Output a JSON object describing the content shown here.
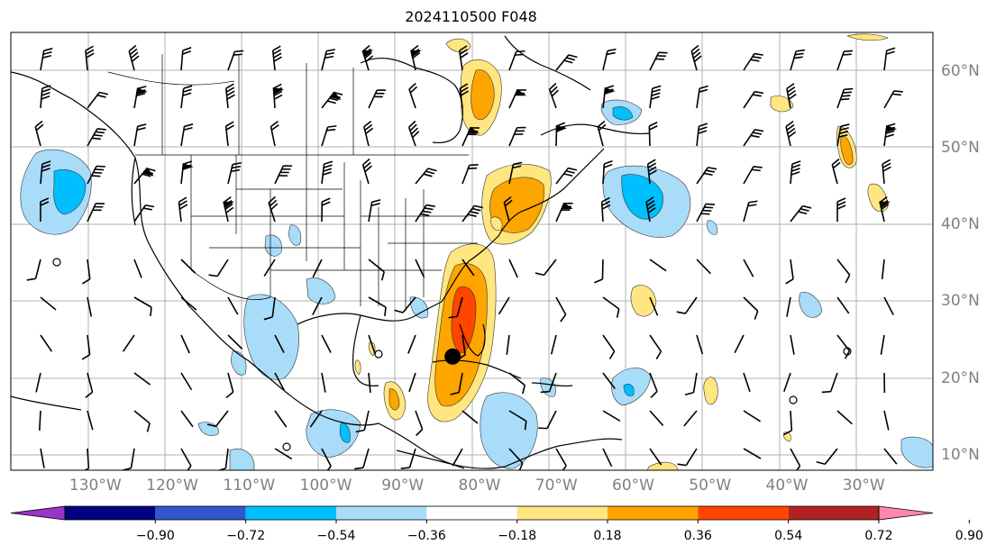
{
  "title": "2024110500 F048",
  "lon_labels": [
    {
      "value": -130,
      "text": "130°W"
    },
    {
      "value": -120,
      "text": "120°W"
    },
    {
      "value": -110,
      "text": "110°W"
    },
    {
      "value": -100,
      "text": "100°W"
    },
    {
      "value": -90,
      "text": "90°W"
    },
    {
      "value": -80,
      "text": "80°W"
    },
    {
      "value": -70,
      "text": "70°W"
    },
    {
      "value": -60,
      "text": "60°W"
    },
    {
      "value": -50,
      "text": "50°W"
    },
    {
      "value": -40,
      "text": "40°W"
    },
    {
      "value": -30,
      "text": "30°W"
    }
  ],
  "lat_labels": [
    {
      "value": 60,
      "text": "60°N"
    },
    {
      "value": 50,
      "text": "50°N"
    },
    {
      "value": 40,
      "text": "40°N"
    },
    {
      "value": 30,
      "text": "30°N"
    },
    {
      "value": 20,
      "text": "20°N"
    },
    {
      "value": 10,
      "text": "10°N"
    }
  ],
  "extent": {
    "lon_min": -141,
    "lon_max": -21,
    "lat_min": 8,
    "lat_max": 65
  },
  "colorbar": {
    "ticks": [
      "−0.90",
      "−0.72",
      "−0.54",
      "−0.36",
      "−0.18",
      "0.18",
      "0.36",
      "0.54",
      "0.72",
      "0.90"
    ],
    "colors": [
      "#9933cc",
      "#000080",
      "#3355cc",
      "#00bfff",
      "#a8dcf8",
      "#ffffff",
      "#ffe680",
      "#ffa500",
      "#ff4500",
      "#b22222",
      "#ff88aa"
    ]
  },
  "storm_center": {
    "lon": -83.5,
    "lat": 22.8,
    "label": ""
  }
}
